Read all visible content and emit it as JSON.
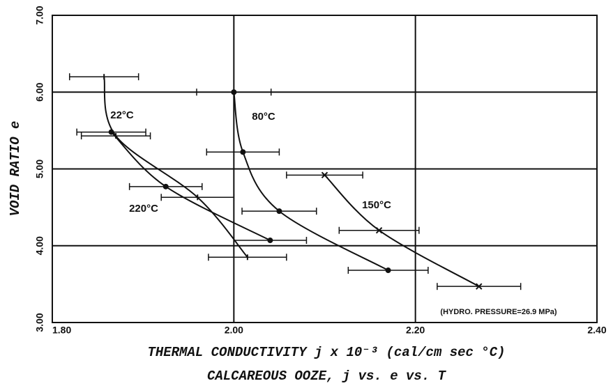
{
  "chart_data": {
    "type": "scatter",
    "title": "CALCAREOUS OOZE, j vs. e vs. T",
    "x_label": "THERMAL CONDUCTIVITY j x 10⁻³  (cal/cm sec °C)",
    "y_label": "VOID RATIO e",
    "annotation": "(HYDRO. PRESSURE=26.9 MPa)",
    "xlim": [
      1.8,
      2.4
    ],
    "ylim": [
      3,
      7
    ],
    "xticks": [
      {
        "value": 1.8,
        "label": "1.80"
      },
      {
        "value": 2.0,
        "label": "2.00"
      },
      {
        "value": 2.2,
        "label": "2.20"
      },
      {
        "value": 2.4,
        "label": "2.40"
      }
    ],
    "yticks": [
      {
        "value": 3,
        "label": "3.00"
      },
      {
        "value": 4,
        "label": "4.00"
      },
      {
        "value": 5,
        "label": "5.00"
      },
      {
        "value": 6,
        "label": "6.00"
      },
      {
        "value": 7,
        "label": "7.00"
      }
    ],
    "grid": true,
    "series": [
      {
        "name": "22°C",
        "color": "#111",
        "marker": "tick",
        "x": [
          1.857,
          1.87,
          1.96,
          2.015
        ],
        "values": [
          6.2,
          5.43,
          4.63,
          3.85
        ],
        "x_err": [
          0.038,
          0.038,
          0.04,
          0.043
        ]
      },
      {
        "name": "80°C",
        "color": "#111",
        "marker": "dot",
        "x": [
          2.0,
          2.01,
          2.05,
          2.17
        ],
        "values": [
          6.0,
          5.22,
          4.45,
          3.68
        ],
        "x_err": [
          0.041,
          0.04,
          0.041,
          0.044
        ]
      },
      {
        "name": "150°C",
        "color": "#111",
        "marker": "cross",
        "x": [
          2.1,
          2.16,
          2.27
        ],
        "values": [
          4.92,
          4.2,
          3.47
        ],
        "x_err": [
          0.042,
          0.044,
          0.046
        ]
      },
      {
        "name": "220°C",
        "color": "#111",
        "marker": "dot",
        "x": [
          1.865,
          1.925,
          2.04
        ],
        "values": [
          5.48,
          4.77,
          4.07
        ],
        "x_err": [
          0.038,
          0.04,
          0.04
        ]
      }
    ]
  }
}
